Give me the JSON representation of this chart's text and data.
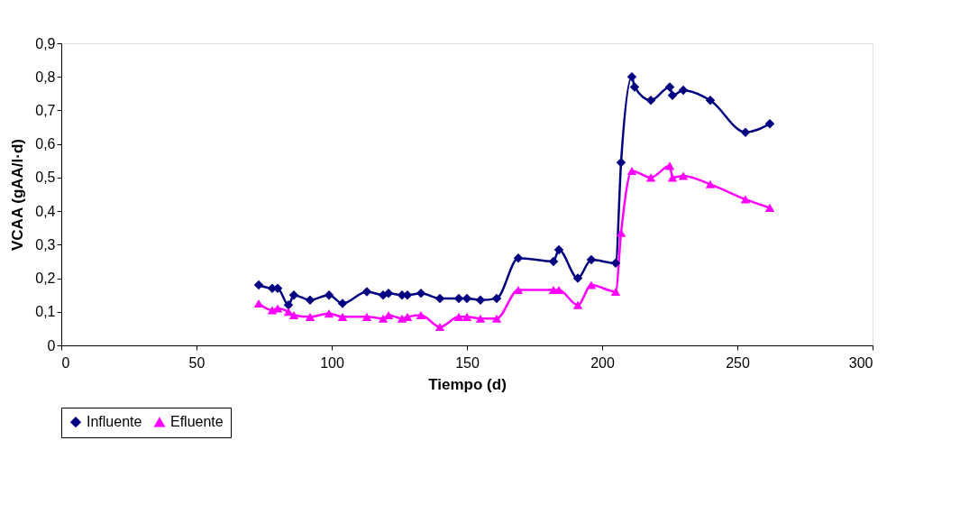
{
  "chart_data": {
    "type": "line",
    "xlabel": "Tiempo (d)",
    "ylabel": "VCAA (gAA/l·d)",
    "xlim": [
      0,
      300
    ],
    "xticks": [
      0,
      50,
      100,
      150,
      200,
      250,
      300
    ],
    "ylim": [
      0,
      0.9
    ],
    "yticks": [
      {
        "value": 0,
        "label": "0"
      },
      {
        "value": 0.1,
        "label": "0,1"
      },
      {
        "value": 0.2,
        "label": "0,2"
      },
      {
        "value": 0.3,
        "label": "0,3"
      },
      {
        "value": 0.4,
        "label": "0,4"
      },
      {
        "value": 0.5,
        "label": "0,5"
      },
      {
        "value": 0.6,
        "label": "0,6"
      },
      {
        "value": 0.7,
        "label": "0,7"
      },
      {
        "value": 0.8,
        "label": "0,8"
      },
      {
        "value": 0.9,
        "label": "0,9"
      }
    ],
    "grid": false,
    "legend": "bottom",
    "line_style": "solid",
    "series": [
      {
        "name": "Influente",
        "color": "#000080",
        "marker": "diamond",
        "x": [
          73,
          78,
          80,
          84,
          86,
          92,
          99,
          104,
          113,
          119,
          121,
          126,
          128,
          133,
          140,
          147,
          150,
          155,
          161,
          169,
          182,
          184,
          191,
          196,
          205,
          207,
          211,
          212,
          218,
          225,
          226,
          230,
          240,
          253,
          262
        ],
        "values": [
          0.18,
          0.17,
          0.17,
          0.12,
          0.15,
          0.135,
          0.15,
          0.125,
          0.16,
          0.15,
          0.155,
          0.15,
          0.15,
          0.155,
          0.14,
          0.14,
          0.14,
          0.135,
          0.14,
          0.26,
          0.25,
          0.285,
          0.2,
          0.255,
          0.245,
          0.545,
          0.8,
          0.77,
          0.73,
          0.77,
          0.745,
          0.76,
          0.73,
          0.635,
          0.66
        ]
      },
      {
        "name": "Efluente",
        "color": "#ff00ff",
        "marker": "triangle",
        "x": [
          73,
          78,
          80,
          84,
          86,
          92,
          99,
          104,
          113,
          119,
          121,
          126,
          128,
          133,
          140,
          147,
          150,
          155,
          161,
          169,
          182,
          184,
          191,
          196,
          205,
          207,
          211,
          218,
          225,
          226,
          230,
          240,
          253,
          262
        ],
        "values": [
          0.125,
          0.105,
          0.11,
          0.1,
          0.09,
          0.085,
          0.095,
          0.085,
          0.085,
          0.08,
          0.09,
          0.08,
          0.085,
          0.09,
          0.055,
          0.085,
          0.085,
          0.08,
          0.08,
          0.165,
          0.165,
          0.165,
          0.12,
          0.18,
          0.16,
          0.335,
          0.52,
          0.5,
          0.535,
          0.5,
          0.505,
          0.48,
          0.435,
          0.41
        ]
      }
    ]
  }
}
